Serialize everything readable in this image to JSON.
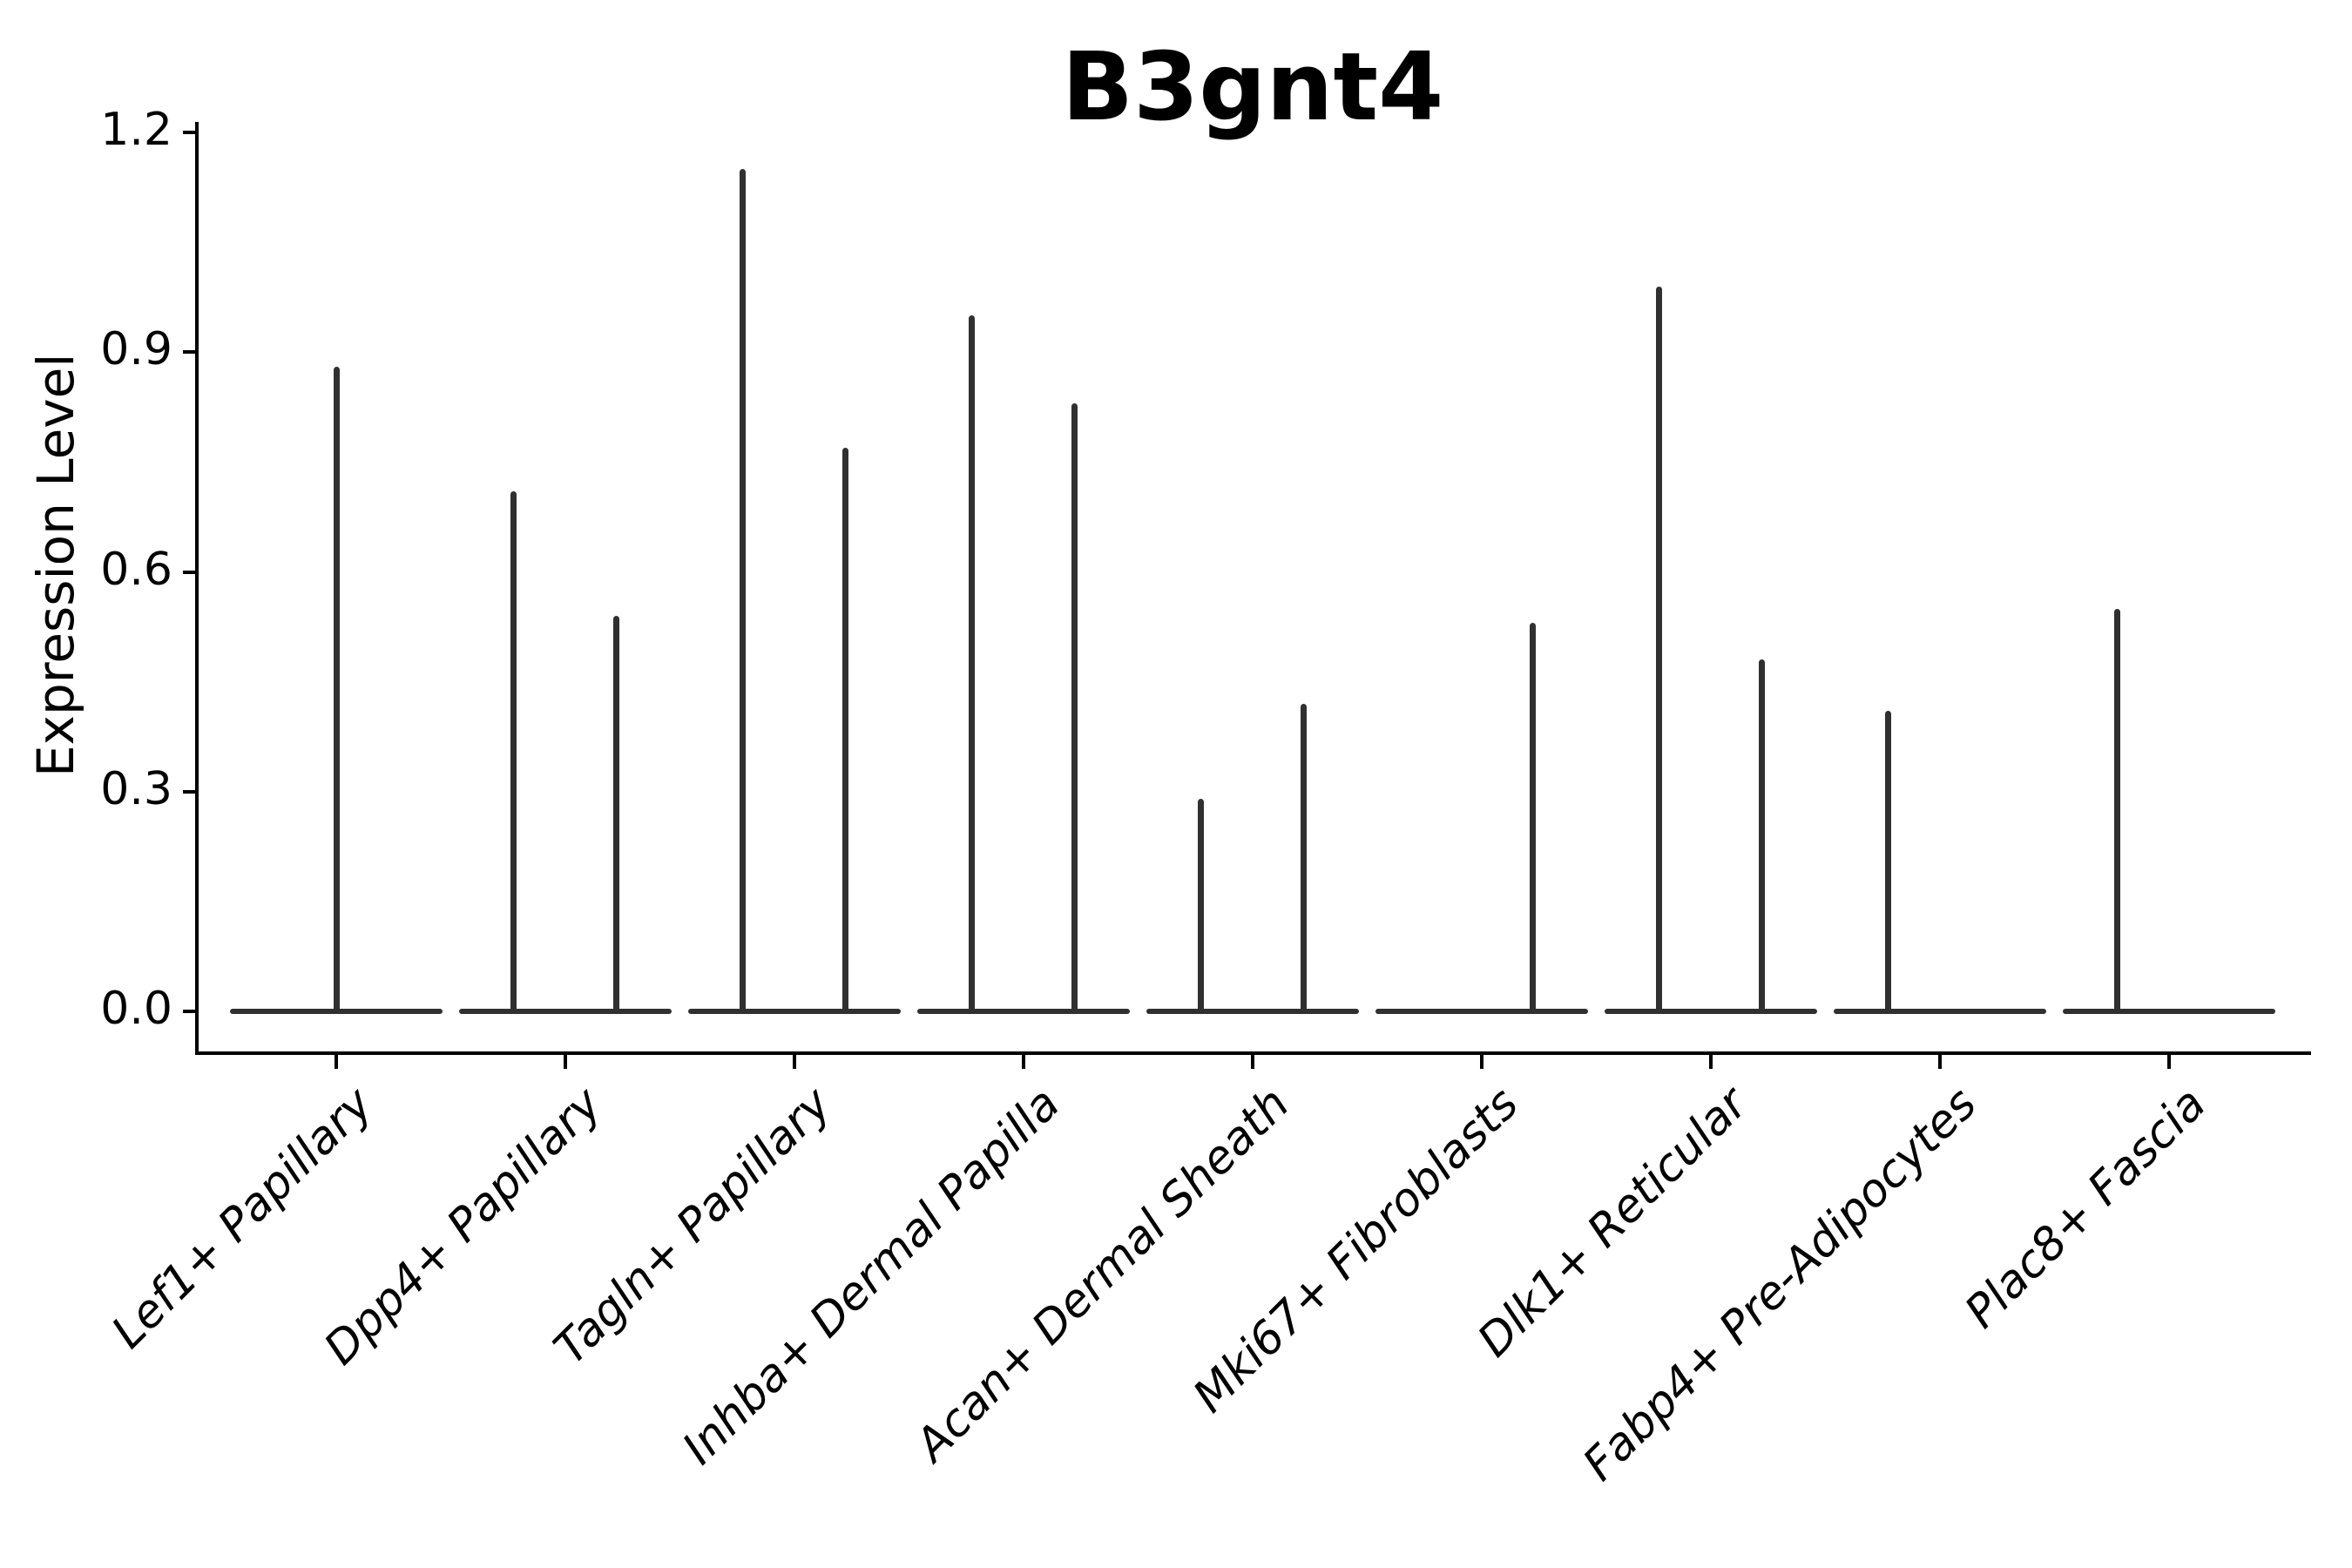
{
  "chart_data": {
    "type": "violin",
    "title": "B3gnt4",
    "xlabel": "",
    "ylabel": "Expression Level",
    "ylim": [
      0,
      1.2
    ],
    "grid": false,
    "legend": "none",
    "y_tick_labels": [
      "0.0",
      "0.3",
      "0.6",
      "0.9",
      "1.2"
    ],
    "y_tick_values": [
      0.0,
      0.3,
      0.6,
      0.9,
      1.2
    ],
    "categories": [
      "Lef1+ Papillary",
      "Dpp4+ Papillary",
      "Tagln+ Papillary",
      "Inhba+ Dermal Papilla",
      "Acan+ Dermal Sheath",
      "Mki67+ Fibroblasts",
      "Dlk1+ Reticular",
      "Fabp4+ Pre-Adipocytes",
      "Plac8+ Fascia"
    ],
    "series": [
      {
        "name": "Lef1+ Papillary",
        "spikes": [
          {
            "pos": "center",
            "max": 0.88
          }
        ]
      },
      {
        "name": "Dpp4+ Papillary",
        "spikes": [
          {
            "pos": "left",
            "max": 0.71
          },
          {
            "pos": "right",
            "max": 0.54
          }
        ]
      },
      {
        "name": "Tagln+ Papillary",
        "spikes": [
          {
            "pos": "left",
            "max": 1.15
          },
          {
            "pos": "right",
            "max": 0.77
          }
        ]
      },
      {
        "name": "Inhba+ Dermal Papilla",
        "spikes": [
          {
            "pos": "left",
            "max": 0.95
          },
          {
            "pos": "right",
            "max": 0.83
          }
        ]
      },
      {
        "name": "Acan+ Dermal Sheath",
        "spikes": [
          {
            "pos": "left",
            "max": 0.29
          },
          {
            "pos": "right",
            "max": 0.42
          }
        ]
      },
      {
        "name": "Mki67+ Fibroblasts",
        "spikes": [
          {
            "pos": "right",
            "max": 0.53
          }
        ]
      },
      {
        "name": "Dlk1+ Reticular",
        "spikes": [
          {
            "pos": "left",
            "max": 0.99
          },
          {
            "pos": "right",
            "max": 0.48
          }
        ]
      },
      {
        "name": "Fabp4+ Pre-Adipocytes",
        "spikes": [
          {
            "pos": "left",
            "max": 0.41
          }
        ]
      },
      {
        "name": "Plac8+ Fascia",
        "spikes": [
          {
            "pos": "left",
            "max": 0.55
          }
        ]
      }
    ],
    "style": {
      "violin_color": "#303030",
      "axis_color": "#000000",
      "text_color": "#000000",
      "background": "#ffffff"
    }
  }
}
